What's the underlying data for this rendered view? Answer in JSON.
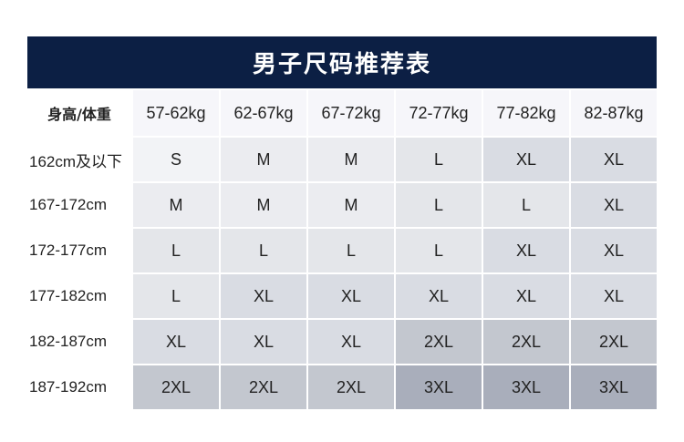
{
  "title": "男子尺码推荐表",
  "corner_label": "身高/体重",
  "weights": [
    "57-62kg",
    "62-67kg",
    "67-72kg",
    "72-77kg",
    "77-82kg",
    "82-87kg"
  ],
  "rows": [
    {
      "height": "162cm及以下",
      "sizes": [
        "S",
        "M",
        "M",
        "L",
        "XL",
        "XL"
      ]
    },
    {
      "height": "167-172cm",
      "sizes": [
        "M",
        "M",
        "M",
        "L",
        "L",
        "XL"
      ]
    },
    {
      "height": "172-177cm",
      "sizes": [
        "L",
        "L",
        "L",
        "L",
        "XL",
        "XL"
      ]
    },
    {
      "height": "177-182cm",
      "sizes": [
        "L",
        "XL",
        "XL",
        "XL",
        "XL",
        "XL"
      ]
    },
    {
      "height": "182-187cm",
      "sizes": [
        "XL",
        "XL",
        "XL",
        "2XL",
        "2XL",
        "2XL"
      ]
    },
    {
      "height": "187-192cm",
      "sizes": [
        "2XL",
        "2XL",
        "2XL",
        "3XL",
        "3XL",
        "3XL"
      ]
    }
  ],
  "colors": {
    "title_bg": "#0c1f44",
    "S": "#f2f3f6",
    "M": "#ebecf0",
    "L": "#e4e6ea",
    "XL": "#d9dce3",
    "2XL": "#c3c7cf",
    "3XL": "#a9aebb"
  }
}
